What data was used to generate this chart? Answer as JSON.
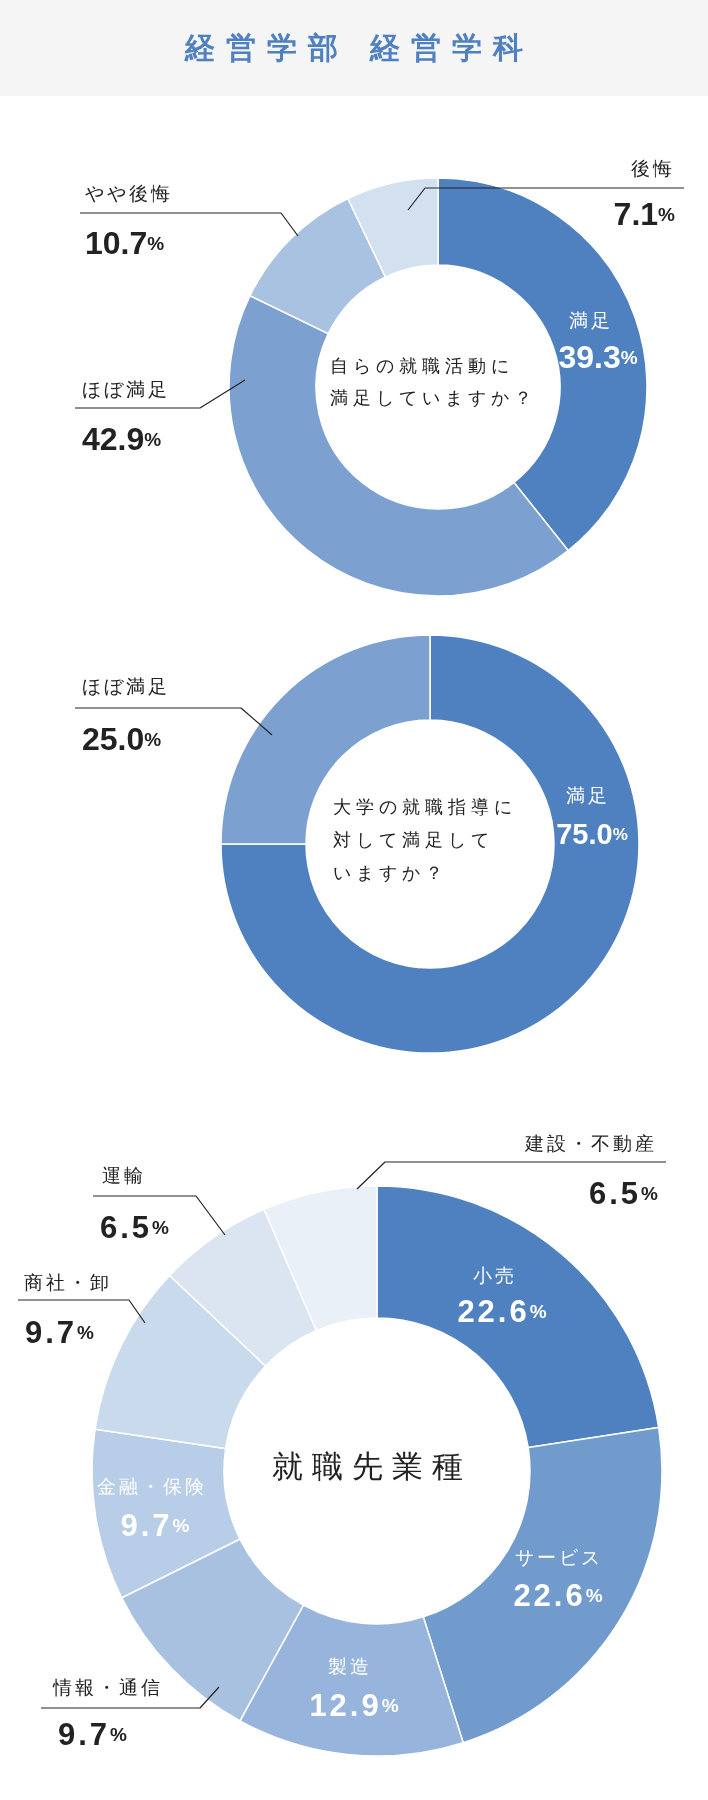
{
  "chart_data": [
    {
      "type": "donut",
      "title": "経営学部 経営学科",
      "subtitle": "自らの就職活動に満足していますか？",
      "categories": [
        "満足",
        "ほぼ満足",
        "やや後悔",
        "後悔"
      ],
      "values": [
        39.3,
        42.9,
        10.7,
        7.1
      ],
      "colors": [
        "#4f81c1",
        "#7ca1d1",
        "#a9c2e1",
        "#d3e0f0"
      ],
      "value_labels": [
        "39.3%",
        "42.9%",
        "10.7%",
        "7.1%"
      ]
    },
    {
      "type": "donut",
      "title": "大学の就職指導に対して満足していますか？",
      "categories": [
        "満足",
        "ほぼ満足"
      ],
      "values": [
        75.0,
        25.0
      ],
      "colors": [
        "#4f81c1",
        "#7ca1d1"
      ],
      "value_labels": [
        "75.0%",
        "25.0%"
      ]
    },
    {
      "type": "donut",
      "title": "就職先業種",
      "categories": [
        "小売",
        "サービス",
        "製造",
        "情報・通信",
        "金融・保険",
        "商社・卸",
        "運輸",
        "建設・不動産"
      ],
      "values": [
        22.6,
        22.6,
        12.9,
        9.7,
        9.7,
        9.7,
        6.5,
        6.5
      ],
      "colors": [
        "#4f81c1",
        "#729bcd",
        "#96b4dc",
        "#a8c1e1",
        "#b8cde7",
        "#c9daed",
        "#dbe5f2",
        "#eaf0f8"
      ],
      "value_labels": [
        "22.6%",
        "22.6%",
        "12.9%",
        "9.7%",
        "9.7%",
        "9.7%",
        "6.5%",
        "6.5%"
      ]
    }
  ]
}
